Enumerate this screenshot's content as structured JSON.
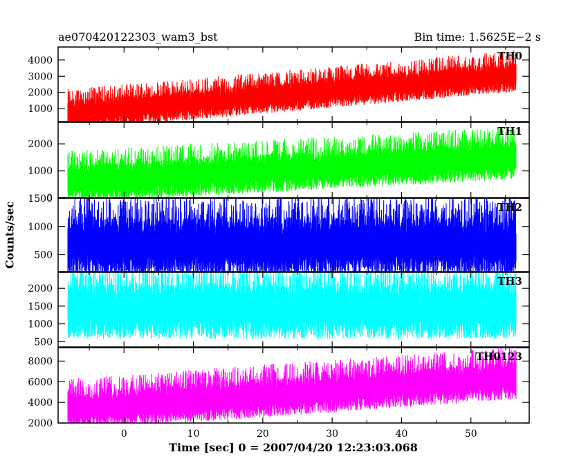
{
  "header": {
    "title": "ae070420122303_wam3_bst",
    "bin_time": "Bin time: 1.5625E−2 s"
  },
  "axes": {
    "ylabel": "Counts/sec",
    "xlabel": "Time [sec] 0 = 2007/04/20 12:23:03.068"
  },
  "chart_data": {
    "type": "line",
    "x_range": [
      -8.1,
      56.5
    ],
    "xlim": [
      -9.5,
      58.4
    ],
    "x_ticks": [
      0,
      10,
      20,
      30,
      40,
      50
    ],
    "panels": [
      {
        "name": "TH0",
        "color": "#ff0000",
        "ylim": [
          200,
          4800
        ],
        "ticks": [
          1000,
          2000,
          3000,
          4000
        ],
        "trend": [
          700,
          3100
        ],
        "noise": 1500
      },
      {
        "name": "TH1",
        "color": "#00ff00",
        "ylim": [
          0,
          2800
        ],
        "ticks": [
          0,
          1000,
          2000
        ],
        "trend": [
          600,
          1500
        ],
        "noise": 1150
      },
      {
        "name": "TH2",
        "color": "#0000ff",
        "ylim": [
          200,
          1500
        ],
        "ticks": [
          500,
          1000,
          1500
        ],
        "trend": [
          700,
          700
        ],
        "noise": 850
      },
      {
        "name": "TH3",
        "color": "#00ffff",
        "ylim": [
          350,
          2450
        ],
        "ticks": [
          500,
          1000,
          1500,
          2000
        ],
        "trend": [
          1450,
          1450
        ],
        "noise": 1250
      },
      {
        "name": "TH0123",
        "color": "#ff00ff",
        "ylim": [
          2000,
          9300
        ],
        "ticks": [
          2000,
          4000,
          6000,
          8000
        ],
        "trend": [
          3300,
          6400
        ],
        "noise": 3000
      }
    ]
  }
}
